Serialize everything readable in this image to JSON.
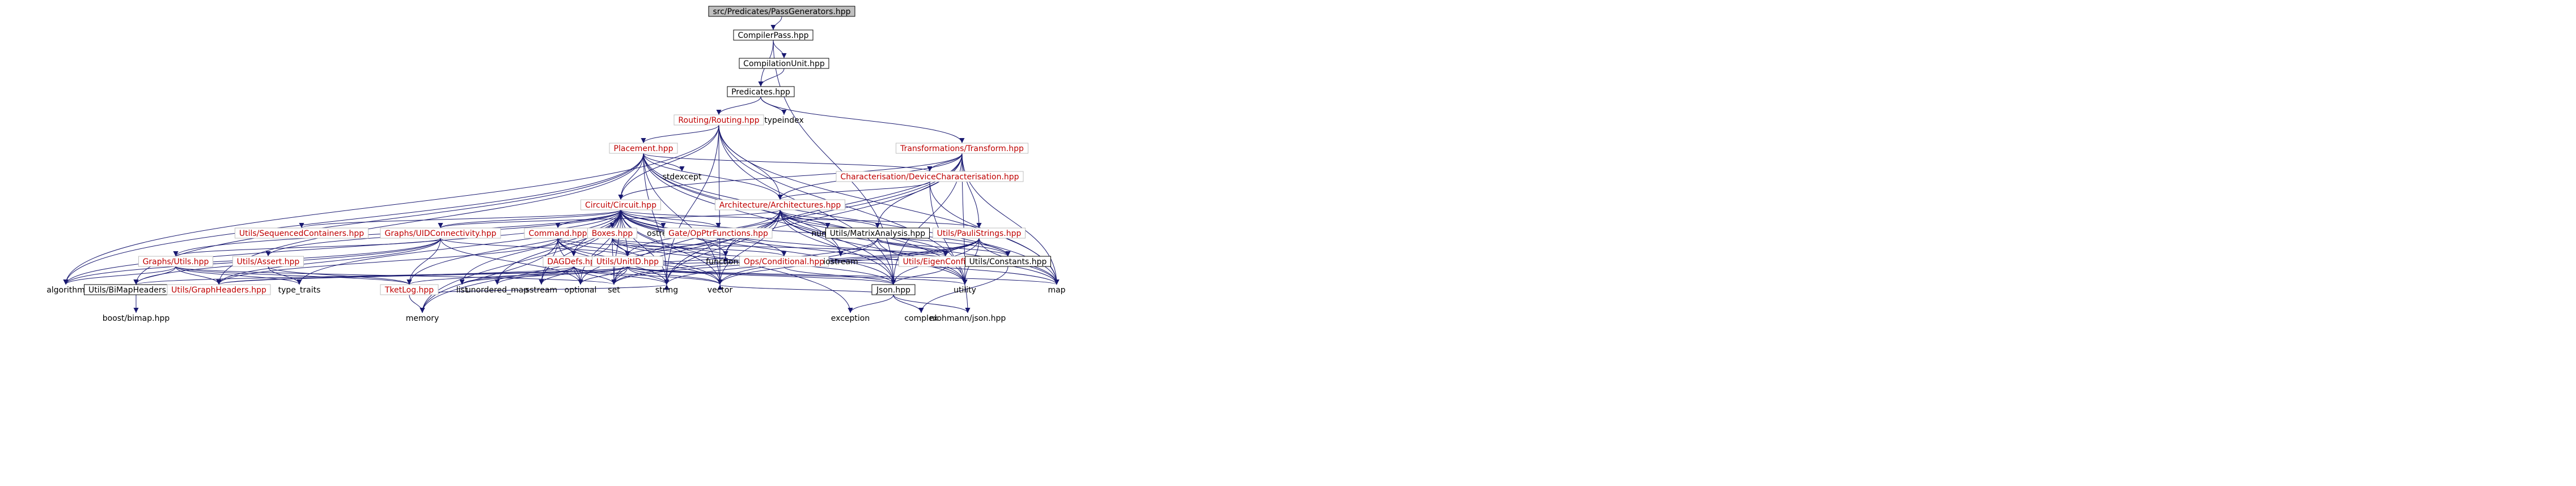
{
  "colors": {
    "edge": "#191970",
    "node_border": "#000000",
    "node_border_linked": "#bfbfbf",
    "node_fill": "#ffffff",
    "root_fill": "#bfbfbf",
    "text_default": "#000000",
    "text_linked": "#bf0000"
  },
  "nodes": {
    "pass_generators": "src/Predicates/PassGenerators.hpp",
    "compiler_pass": "CompilerPass.hpp",
    "compilation_unit": "CompilationUnit.hpp",
    "predicates": "Predicates.hpp",
    "routing": "Routing/Routing.hpp",
    "typeindex": "typeindex",
    "transform": "Transformations/Transform.hpp",
    "placement": "Placement.hpp",
    "device_characterisation": "Characterisation/DeviceCharacterisation.hpp",
    "circuit": "Circuit/Circuit.hpp",
    "stdexcept": "stdexcept",
    "architectures": "Architecture/Architectures.hpp",
    "sequenced_containers": "Utils/SequencedContainers.hpp",
    "uid_connectivity": "Graphs/UIDConnectivity.hpp",
    "command": "Command.hpp",
    "boxes": "Boxes.hpp",
    "ostream": "ostream",
    "gate_ptr_functions": "Gate/OpPtrFunctions.hpp",
    "numeric": "numeric",
    "matrix_analysis": "Utils/MatrixAnalysis.hpp",
    "pauli_strings": "Utils/PauliStrings.hpp",
    "graph_utils": "Graphs/Utils.hpp",
    "utils_assert": "Utils/Assert.hpp",
    "dag_defs": "DAGDefs.hpp",
    "unit_id": "Utils/UnitID.hpp",
    "functional": "functional",
    "ops_conditional": "Ops/Conditional.hpp",
    "iostream": "iostream",
    "eigen_config": "Utils/EigenConfig.hpp",
    "utils_constants": "Utils/Constants.hpp",
    "algorithm": "algorithm",
    "bimap_headers": "Utils/BiMapHeaders.hpp",
    "graph_headers": "Utils/GraphHeaders.hpp",
    "type_traits": "type_traits",
    "tket_log": "TketLog.hpp",
    "list": "list",
    "unordered_map": "unordered_map",
    "sstream": "sstream",
    "optional": "optional",
    "set": "set",
    "string": "string",
    "vector": "vector",
    "json": "Json.hpp",
    "utility": "utility",
    "map": "map",
    "boost_bimap": "boost/bimap.hpp",
    "memory": "memory",
    "exception": "exception",
    "complex": "complex",
    "nlohmann_json": "nlohmann/json.hpp"
  }
}
